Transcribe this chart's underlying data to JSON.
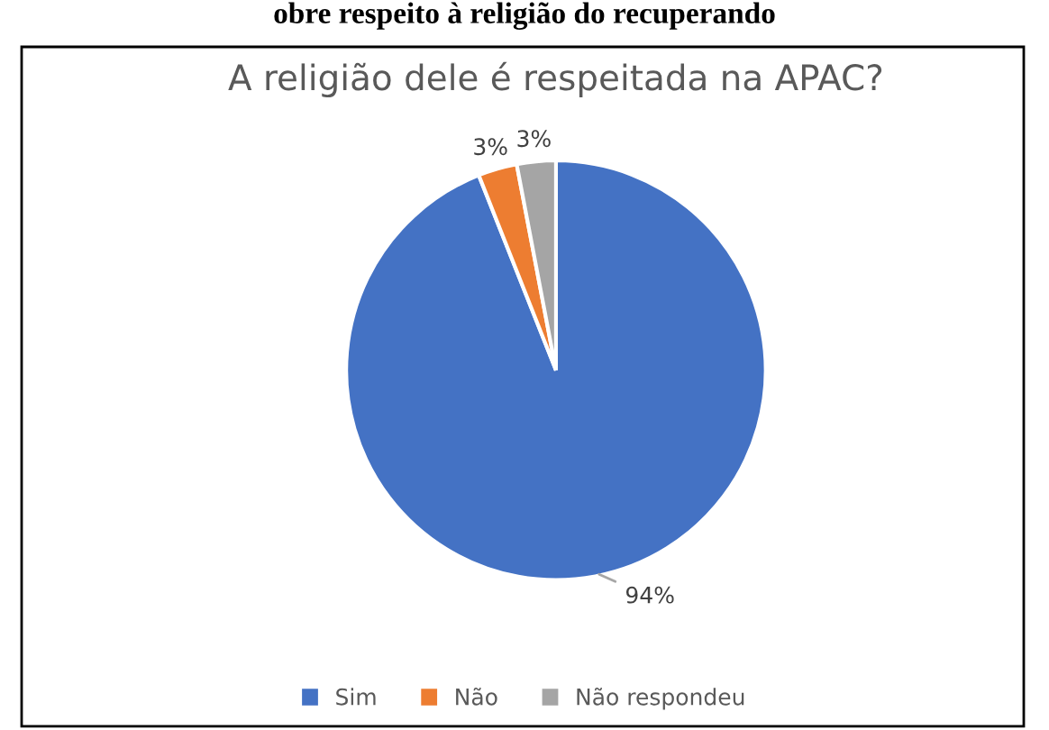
{
  "chart_data": {
    "type": "pie",
    "title": "A religião dele é respeitada na APAC?",
    "annotations": [
      "obre respeito à religião do recuperando"
    ],
    "categories": [
      "Sim",
      "Não",
      "Não respondeu"
    ],
    "values": [
      94,
      3,
      3
    ],
    "colors": [
      "#4472c4",
      "#ed7d31",
      "#a5a5a5"
    ],
    "value_labels": [
      "94%",
      "3%",
      "3%"
    ],
    "legend": "bottom"
  }
}
